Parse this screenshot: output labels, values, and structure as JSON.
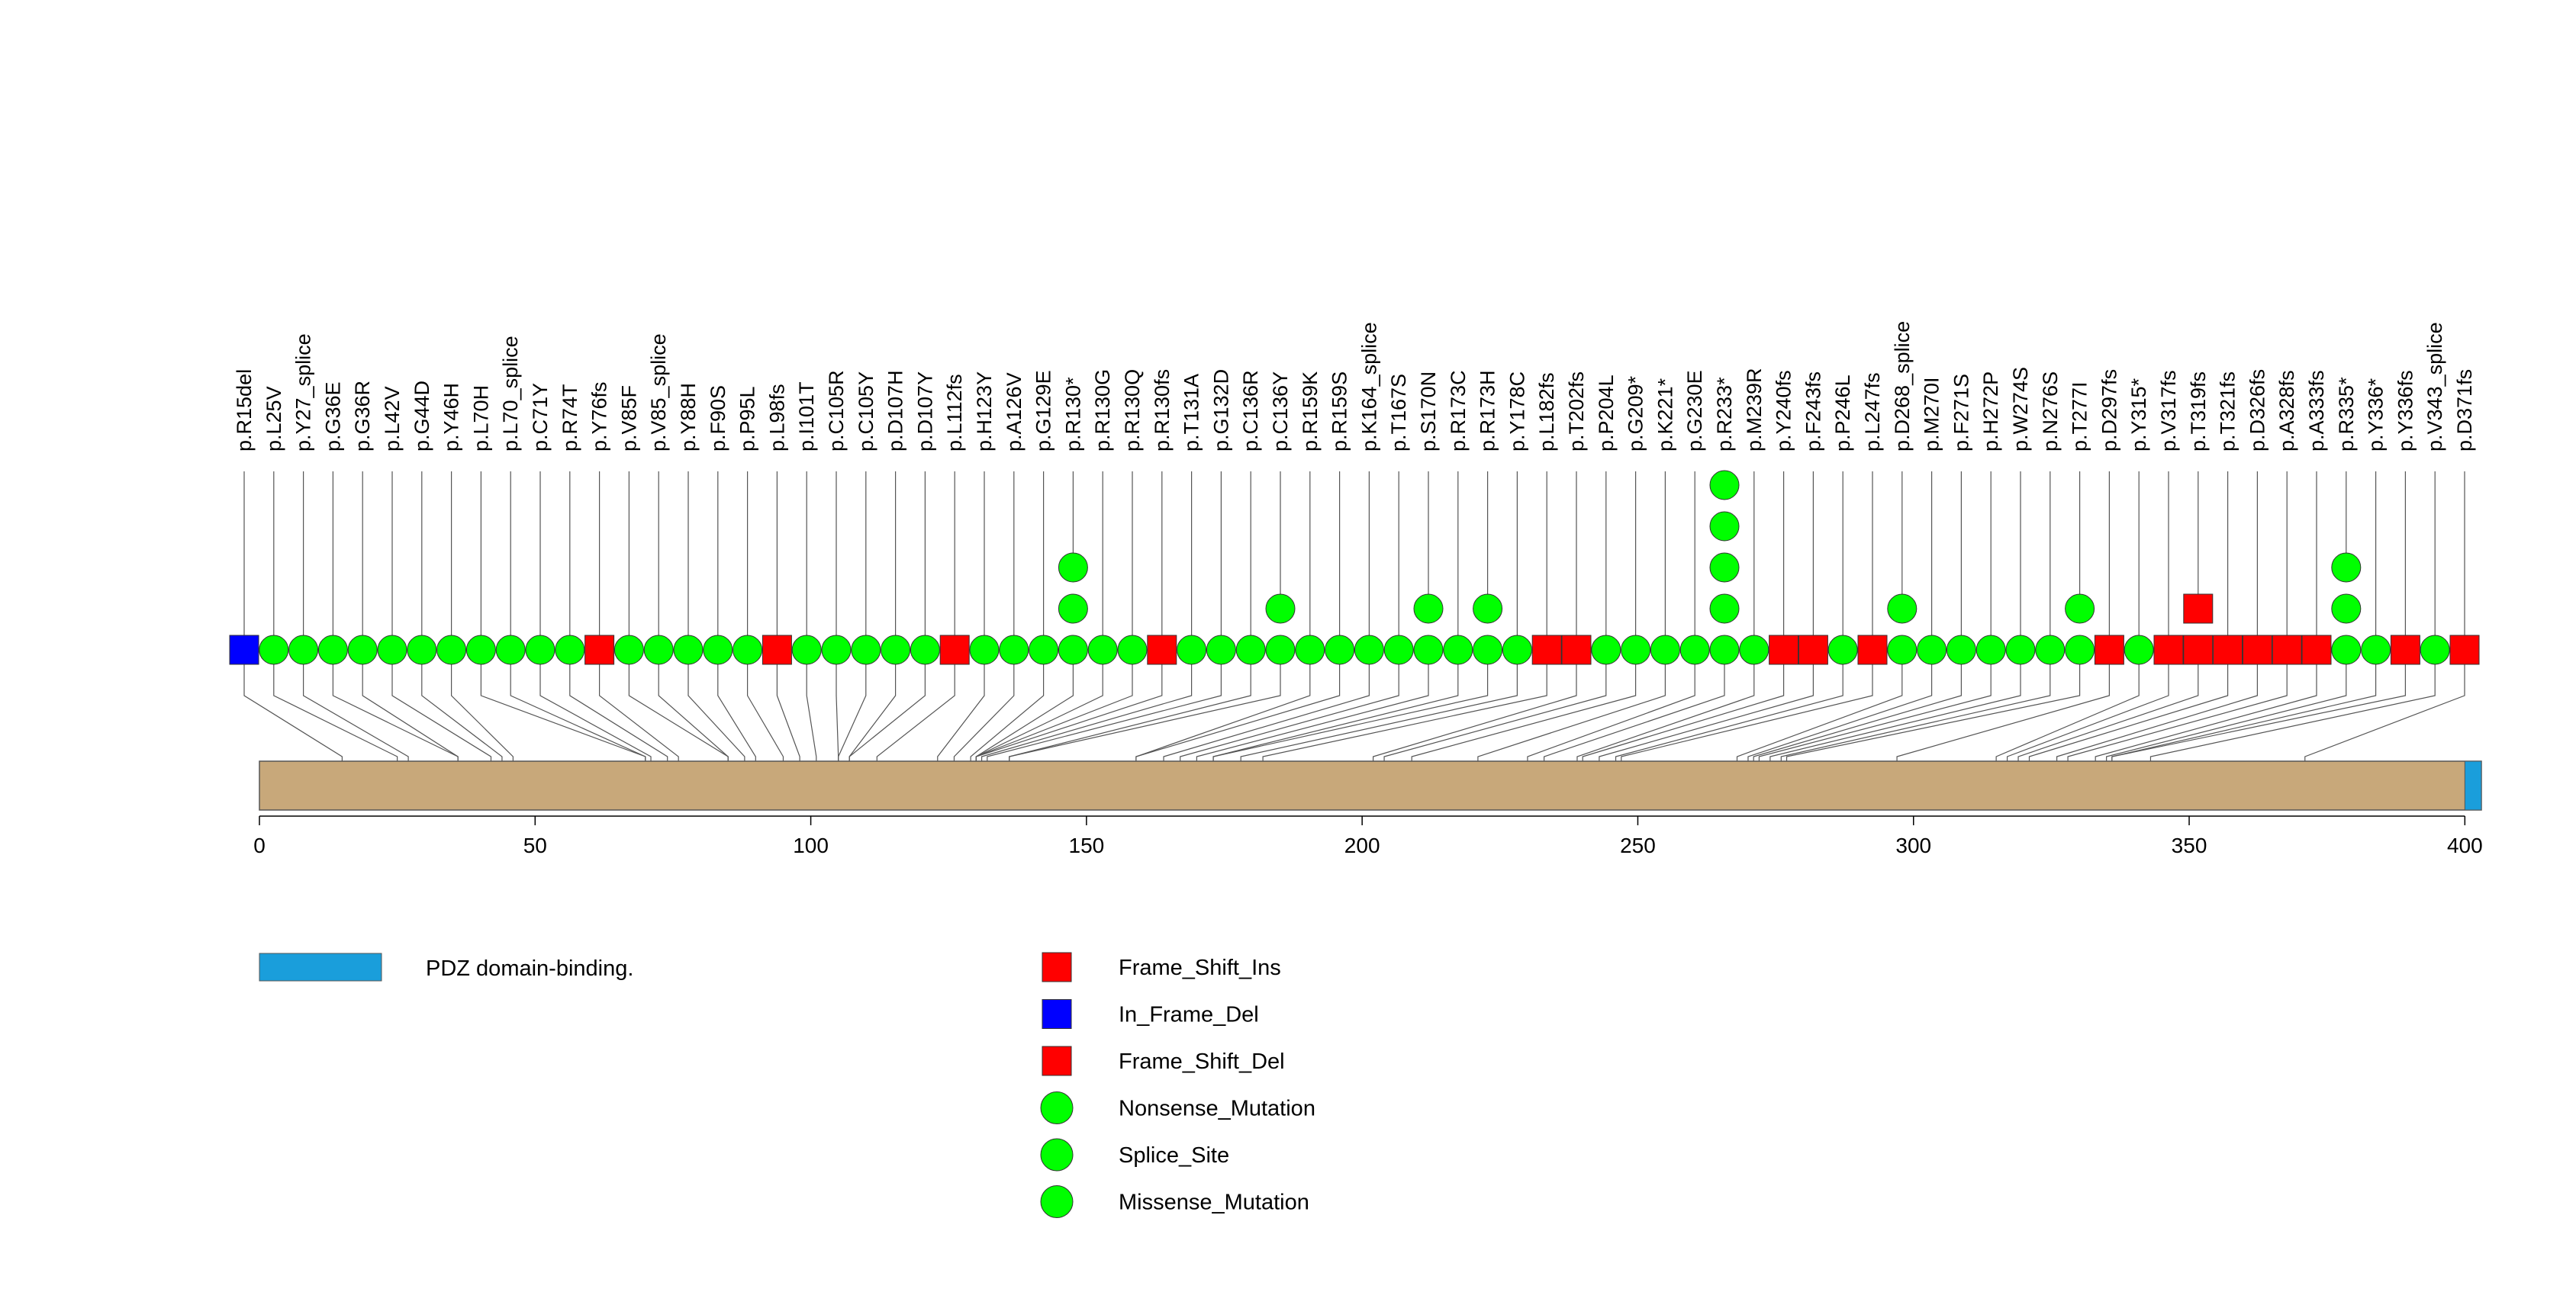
{
  "chart_data": {
    "type": "lollipop",
    "title": "",
    "xlabel": "",
    "ylabel": "",
    "protein_length": 403,
    "xlim": [
      0,
      403
    ],
    "x_ticks": [
      0,
      50,
      100,
      150,
      200,
      250,
      300,
      350,
      400
    ],
    "x_tick_labels": [
      "0",
      "50",
      "100",
      "150",
      "200",
      "250",
      "300",
      "350",
      "400"
    ],
    "domains": [
      {
        "name": "PDZ domain-binding.",
        "start": 400,
        "end": 403,
        "color": "#1a9edb"
      }
    ],
    "mutation_types": [
      {
        "name": "Frame_Shift_Ins",
        "shape": "square",
        "color": "#ff0000"
      },
      {
        "name": "In_Frame_Del",
        "shape": "square",
        "color": "#0000ff"
      },
      {
        "name": "Frame_Shift_Del",
        "shape": "square",
        "color": "#ff0000"
      },
      {
        "name": "Nonsense_Mutation",
        "shape": "circle",
        "color": "#00ff00"
      },
      {
        "name": "Splice_Site",
        "shape": "circle",
        "color": "#00ff00"
      },
      {
        "name": "Missense_Mutation",
        "shape": "circle",
        "color": "#00ff00"
      }
    ],
    "mutations": [
      {
        "label": "p.R15del",
        "position": 15,
        "shapes": [
          "square-blue"
        ]
      },
      {
        "label": "p.L25V",
        "position": 25,
        "shapes": [
          "circle"
        ]
      },
      {
        "label": "p.Y27_splice",
        "position": 27,
        "shapes": [
          "circle"
        ]
      },
      {
        "label": "p.G36E",
        "position": 36,
        "shapes": [
          "circle"
        ]
      },
      {
        "label": "p.G36R",
        "position": 36,
        "shapes": [
          "circle"
        ]
      },
      {
        "label": "p.L42V",
        "position": 42,
        "shapes": [
          "circle"
        ]
      },
      {
        "label": "p.G44D",
        "position": 44,
        "shapes": [
          "circle"
        ]
      },
      {
        "label": "p.Y46H",
        "position": 46,
        "shapes": [
          "circle"
        ]
      },
      {
        "label": "p.L70H",
        "position": 70,
        "shapes": [
          "circle"
        ]
      },
      {
        "label": "p.L70_splice",
        "position": 70,
        "shapes": [
          "circle"
        ]
      },
      {
        "label": "p.C71Y",
        "position": 71,
        "shapes": [
          "circle"
        ]
      },
      {
        "label": "p.R74T",
        "position": 74,
        "shapes": [
          "circle"
        ]
      },
      {
        "label": "p.Y76fs",
        "position": 76,
        "shapes": [
          "square"
        ]
      },
      {
        "label": "p.V85F",
        "position": 85,
        "shapes": [
          "circle"
        ]
      },
      {
        "label": "p.V85_splice",
        "position": 85,
        "shapes": [
          "circle"
        ]
      },
      {
        "label": "p.Y88H",
        "position": 88,
        "shapes": [
          "circle"
        ]
      },
      {
        "label": "p.F90S",
        "position": 90,
        "shapes": [
          "circle"
        ]
      },
      {
        "label": "p.P95L",
        "position": 95,
        "shapes": [
          "circle"
        ]
      },
      {
        "label": "p.L98fs",
        "position": 98,
        "shapes": [
          "square"
        ]
      },
      {
        "label": "p.I101T",
        "position": 101,
        "shapes": [
          "circle"
        ]
      },
      {
        "label": "p.C105R",
        "position": 105,
        "shapes": [
          "circle"
        ]
      },
      {
        "label": "p.C105Y",
        "position": 105,
        "shapes": [
          "circle"
        ]
      },
      {
        "label": "p.D107H",
        "position": 107,
        "shapes": [
          "circle"
        ]
      },
      {
        "label": "p.D107Y",
        "position": 107,
        "shapes": [
          "circle"
        ]
      },
      {
        "label": "p.L112fs",
        "position": 112,
        "shapes": [
          "square"
        ]
      },
      {
        "label": "p.H123Y",
        "position": 123,
        "shapes": [
          "circle"
        ]
      },
      {
        "label": "p.A126V",
        "position": 126,
        "shapes": [
          "circle"
        ]
      },
      {
        "label": "p.G129E",
        "position": 129,
        "shapes": [
          "circle"
        ]
      },
      {
        "label": "p.R130*",
        "position": 130,
        "shapes": [
          "circle",
          "circle",
          "circle"
        ]
      },
      {
        "label": "p.R130G",
        "position": 130,
        "shapes": [
          "circle"
        ]
      },
      {
        "label": "p.R130Q",
        "position": 130,
        "shapes": [
          "circle"
        ]
      },
      {
        "label": "p.R130fs",
        "position": 130,
        "shapes": [
          "square"
        ]
      },
      {
        "label": "p.T131A",
        "position": 131,
        "shapes": [
          "circle"
        ]
      },
      {
        "label": "p.G132D",
        "position": 132,
        "shapes": [
          "circle"
        ]
      },
      {
        "label": "p.C136R",
        "position": 136,
        "shapes": [
          "circle"
        ]
      },
      {
        "label": "p.C136Y",
        "position": 136,
        "shapes": [
          "circle",
          "circle"
        ]
      },
      {
        "label": "p.R159K",
        "position": 159,
        "shapes": [
          "circle"
        ]
      },
      {
        "label": "p.R159S",
        "position": 159,
        "shapes": [
          "circle"
        ]
      },
      {
        "label": "p.K164_splice",
        "position": 164,
        "shapes": [
          "circle"
        ]
      },
      {
        "label": "p.T167S",
        "position": 167,
        "shapes": [
          "circle"
        ]
      },
      {
        "label": "p.S170N",
        "position": 170,
        "shapes": [
          "circle",
          "circle"
        ]
      },
      {
        "label": "p.R173C",
        "position": 173,
        "shapes": [
          "circle"
        ]
      },
      {
        "label": "p.R173H",
        "position": 173,
        "shapes": [
          "circle",
          "circle"
        ]
      },
      {
        "label": "p.Y178C",
        "position": 178,
        "shapes": [
          "circle"
        ]
      },
      {
        "label": "p.L182fs",
        "position": 182,
        "shapes": [
          "square"
        ]
      },
      {
        "label": "p.T202fs",
        "position": 202,
        "shapes": [
          "square"
        ]
      },
      {
        "label": "p.P204L",
        "position": 204,
        "shapes": [
          "circle"
        ]
      },
      {
        "label": "p.G209*",
        "position": 209,
        "shapes": [
          "circle"
        ]
      },
      {
        "label": "p.K221*",
        "position": 221,
        "shapes": [
          "circle"
        ]
      },
      {
        "label": "p.G230E",
        "position": 230,
        "shapes": [
          "circle"
        ]
      },
      {
        "label": "p.R233*",
        "position": 233,
        "shapes": [
          "circle",
          "circle",
          "circle",
          "circle",
          "circle"
        ]
      },
      {
        "label": "p.M239R",
        "position": 239,
        "shapes": [
          "circle"
        ]
      },
      {
        "label": "p.Y240fs",
        "position": 240,
        "shapes": [
          "square"
        ]
      },
      {
        "label": "p.F243fs",
        "position": 243,
        "shapes": [
          "square"
        ]
      },
      {
        "label": "p.P246L",
        "position": 246,
        "shapes": [
          "circle"
        ]
      },
      {
        "label": "p.L247fs",
        "position": 247,
        "shapes": [
          "square"
        ]
      },
      {
        "label": "p.D268_splice",
        "position": 268,
        "shapes": [
          "circle",
          "circle"
        ]
      },
      {
        "label": "p.M270I",
        "position": 270,
        "shapes": [
          "circle"
        ]
      },
      {
        "label": "p.F271S",
        "position": 271,
        "shapes": [
          "circle"
        ]
      },
      {
        "label": "p.H272P",
        "position": 272,
        "shapes": [
          "circle"
        ]
      },
      {
        "label": "p.W274S",
        "position": 274,
        "shapes": [
          "circle"
        ]
      },
      {
        "label": "p.N276S",
        "position": 276,
        "shapes": [
          "circle"
        ]
      },
      {
        "label": "p.T277I",
        "position": 277,
        "shapes": [
          "circle",
          "circle"
        ]
      },
      {
        "label": "p.D297fs",
        "position": 297,
        "shapes": [
          "square"
        ]
      },
      {
        "label": "p.Y315*",
        "position": 315,
        "shapes": [
          "circle"
        ]
      },
      {
        "label": "p.V317fs",
        "position": 317,
        "shapes": [
          "square"
        ]
      },
      {
        "label": "p.T319fs",
        "position": 319,
        "shapes": [
          "square",
          "square"
        ]
      },
      {
        "label": "p.T321fs",
        "position": 321,
        "shapes": [
          "square"
        ]
      },
      {
        "label": "p.D326fs",
        "position": 326,
        "shapes": [
          "square"
        ]
      },
      {
        "label": "p.A328fs",
        "position": 328,
        "shapes": [
          "square"
        ]
      },
      {
        "label": "p.A333fs",
        "position": 333,
        "shapes": [
          "square"
        ]
      },
      {
        "label": "p.R335*",
        "position": 335,
        "shapes": [
          "circle",
          "circle",
          "circle"
        ]
      },
      {
        "label": "p.Y336*",
        "position": 336,
        "shapes": [
          "circle"
        ]
      },
      {
        "label": "p.Y336fs",
        "position": 336,
        "shapes": [
          "square"
        ]
      },
      {
        "label": "p.V343_splice",
        "position": 343,
        "shapes": [
          "circle"
        ]
      },
      {
        "label": "p.D371fs",
        "position": 371,
        "shapes": [
          "square"
        ]
      }
    ]
  }
}
